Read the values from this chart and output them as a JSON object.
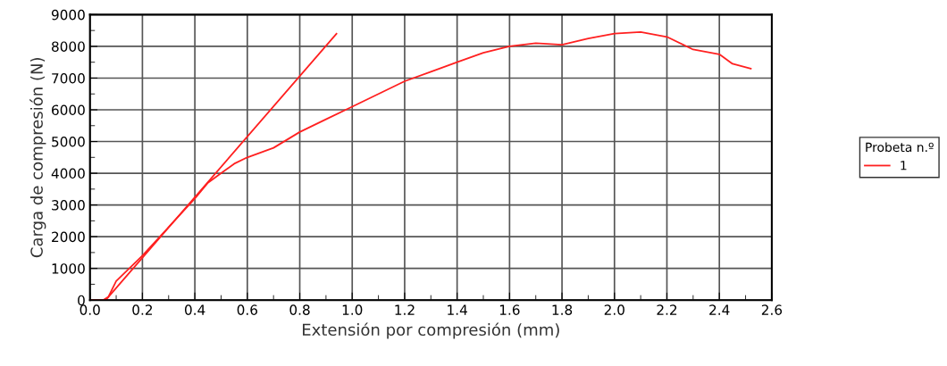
{
  "chart_data": {
    "type": "line",
    "xlabel": "Extensión por compresión (mm)",
    "ylabel": "Carga de compresión (N)",
    "legend_title": "Probeta n.º",
    "legend": "right",
    "grid": true,
    "xlim": [
      0,
      2.6
    ],
    "xticks": [
      {
        "value": 0,
        "label": "0.0"
      },
      0.2,
      0.4,
      0.6,
      0.8,
      {
        "value": 1,
        "label": "1.0"
      },
      1.2,
      1.4,
      1.6,
      1.8,
      {
        "value": 2,
        "label": "2.0"
      },
      2.2,
      2.4,
      2.6
    ],
    "ylim": [
      0,
      9000
    ],
    "yticks": [
      0,
      1000,
      2000,
      3000,
      4000,
      5000,
      6000,
      7000,
      8000,
      9000
    ],
    "series": [
      {
        "name": "1",
        "color": "#ff2020",
        "x": [
          0,
          0.05,
          0.07,
          0.1,
          0.2,
          0.3,
          0.4,
          0.45,
          0.5,
          0.55,
          0.6,
          0.7,
          0.8,
          0.9,
          1.0,
          1.1,
          1.2,
          1.3,
          1.4,
          1.5,
          1.6,
          1.7,
          1.8,
          1.9,
          2.0,
          2.1,
          2.2,
          2.3,
          2.4,
          2.45,
          2.52
        ],
        "values": [
          0,
          0,
          100,
          600,
          1400,
          2300,
          3200,
          3700,
          4000,
          4300,
          4500,
          4800,
          5300,
          5700,
          6100,
          6500,
          6900,
          7200,
          7500,
          7800,
          8000,
          8100,
          8050,
          8250,
          8400,
          8450,
          8300,
          7900,
          7750,
          7450,
          7300
        ]
      },
      {
        "type": "line",
        "color": "#ff2020",
        "x": [
          0.06,
          0.94
        ],
        "values": [
          0,
          8400
        ]
      }
    ]
  }
}
